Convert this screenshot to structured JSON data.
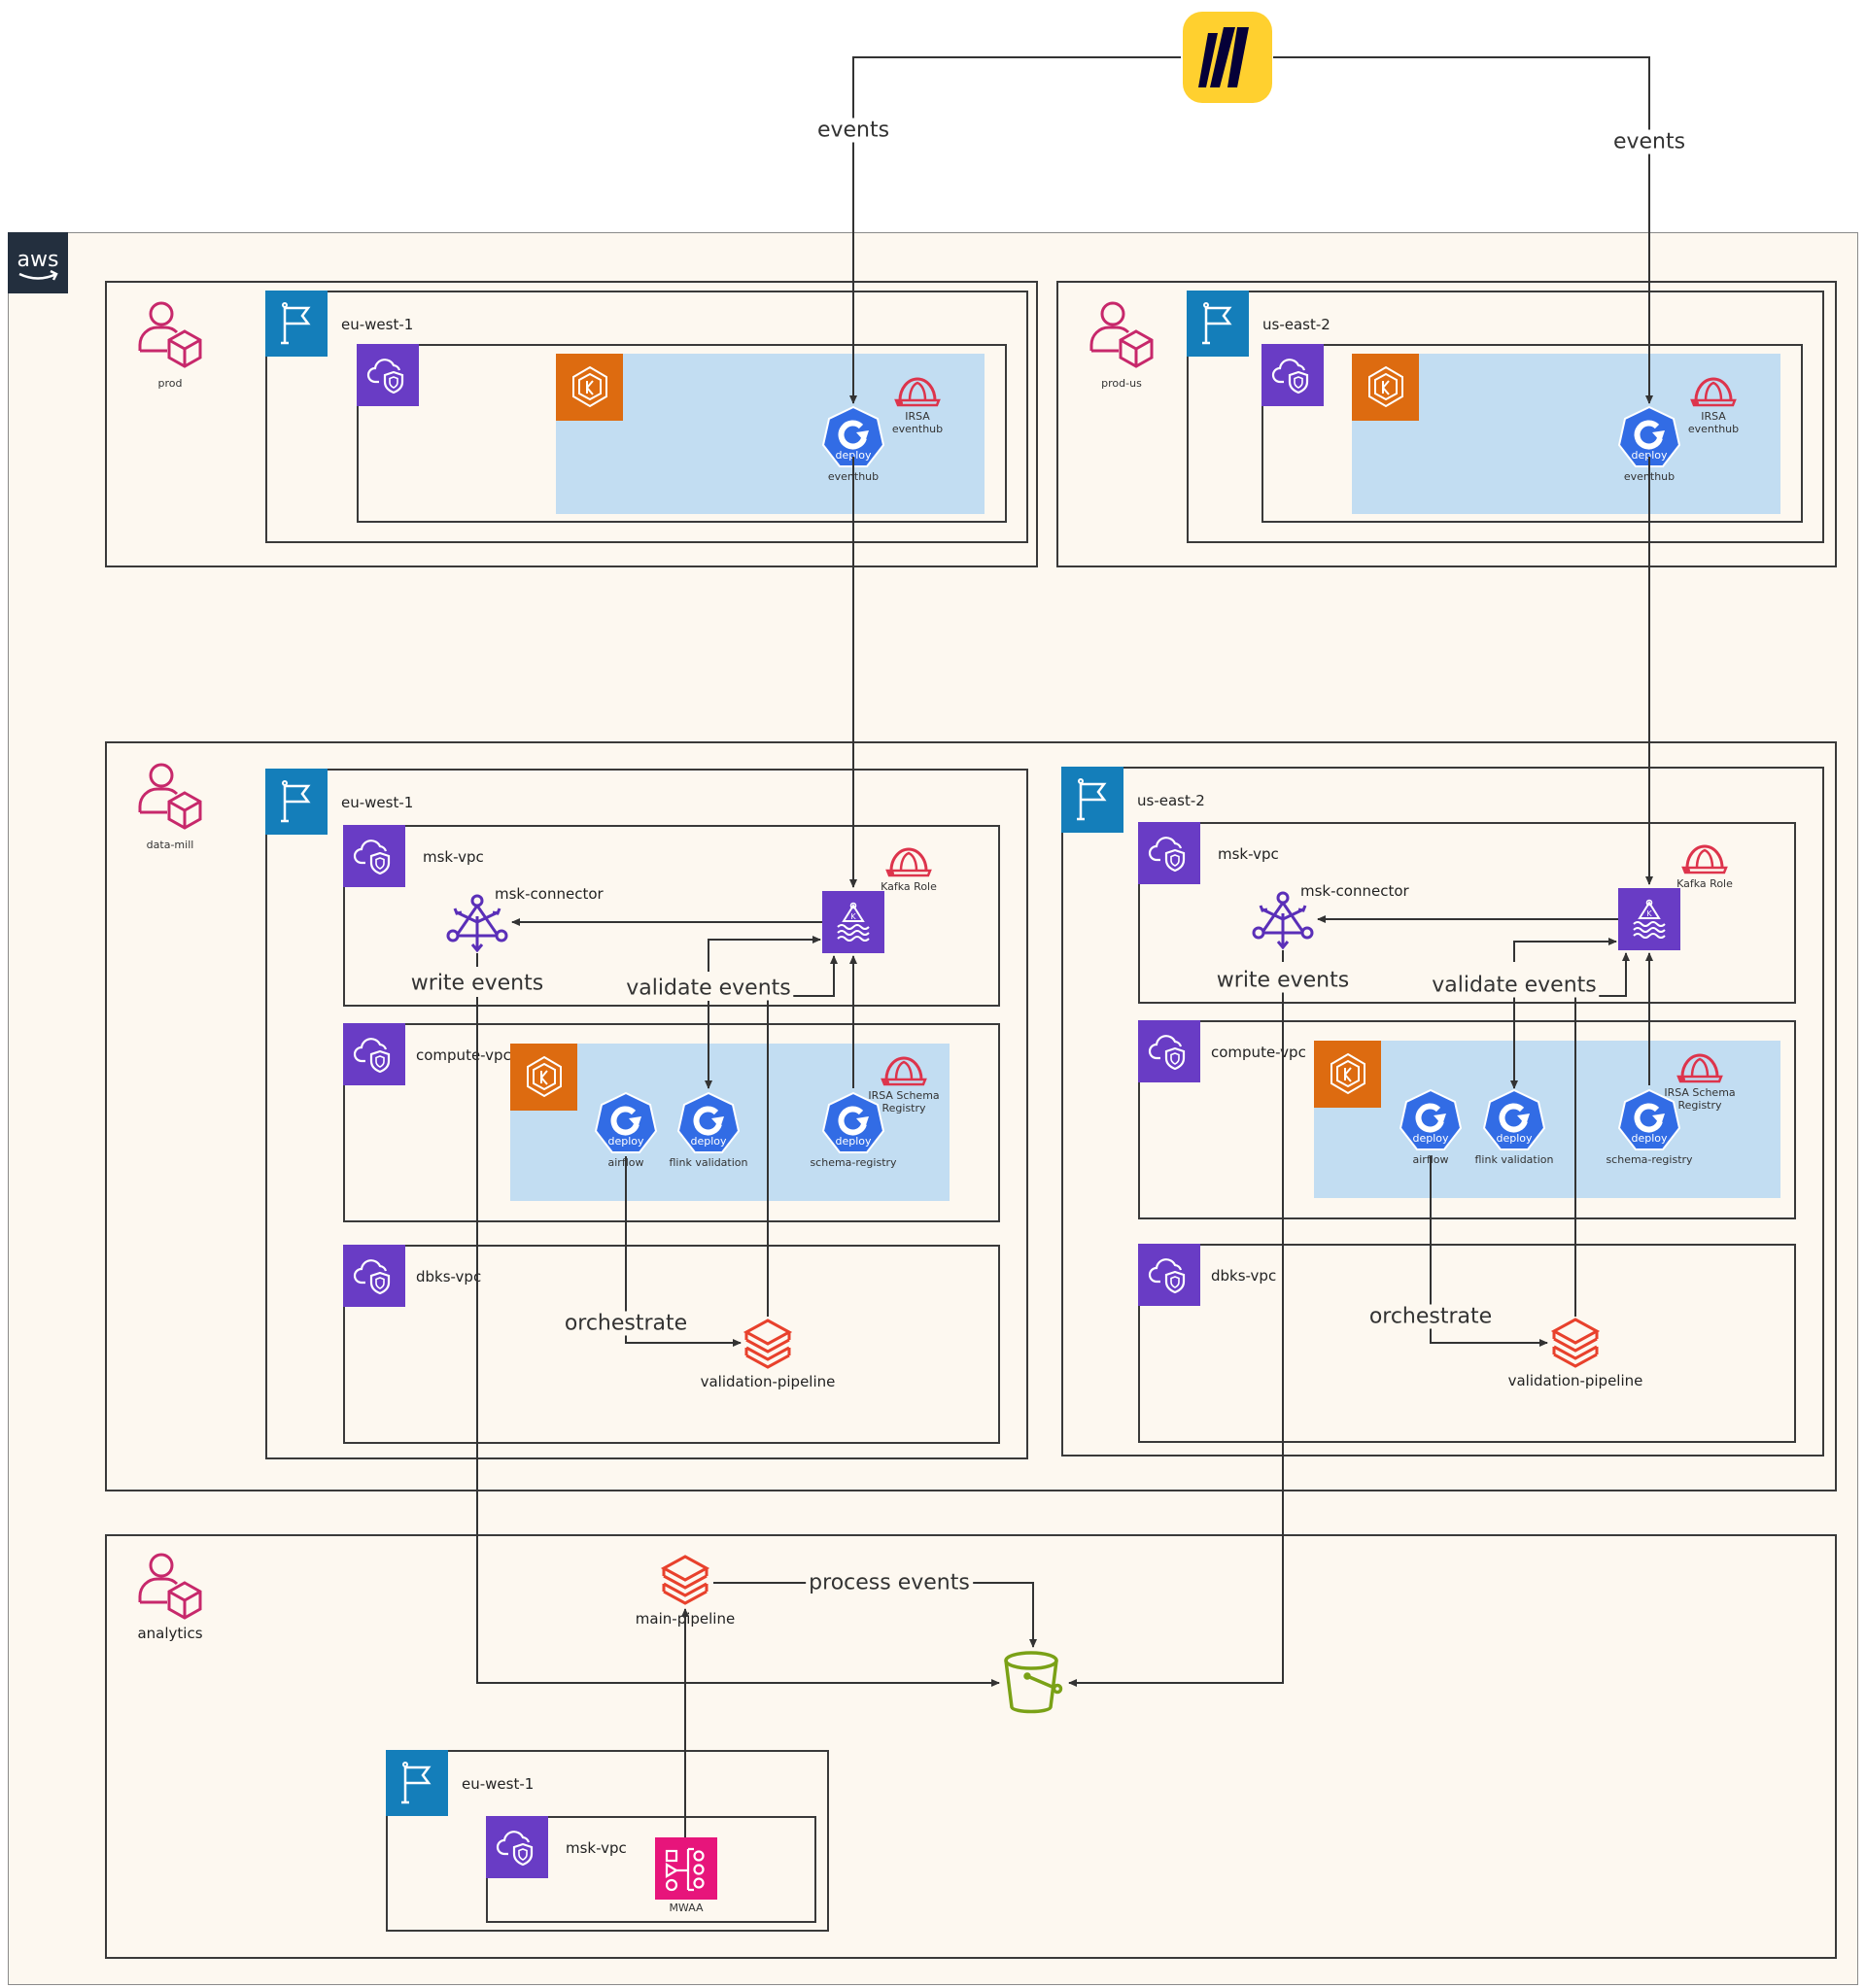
{
  "header": {
    "logo": "miro",
    "events_left": "events",
    "events_right": "events"
  },
  "aws": {
    "logo": "aws"
  },
  "colors": {
    "region": "#147eba",
    "vpc": "#693cc5",
    "eks": "#dd6b10",
    "deploy": "#326ce5",
    "role": "#dd344c",
    "pipeline": "#e8412c",
    "bucket": "#7aa116",
    "mwaa": "#e7157b",
    "account": "#c7286b",
    "eks_area": "#c2ddf2"
  },
  "prod": {
    "account": "prod",
    "region": "eu-west-1",
    "deploy_badge": "deploy",
    "deployment": "eventhub",
    "role_line1": "IRSA",
    "role_line2": "eventhub"
  },
  "prod_us": {
    "account": "prod-us",
    "region": "us-east-2",
    "deploy_badge": "deploy",
    "deployment": "eventhub",
    "role_line1": "IRSA",
    "role_line2": "eventhub"
  },
  "data_mill": {
    "account": "data-mill",
    "eu": {
      "region": "eu-west-1",
      "msk_vpc": "msk-vpc",
      "msk_connector": "msk-connector",
      "kafka_role": "Kafka Role",
      "write_events": "write events",
      "validate_events": "validate events",
      "compute_vpc": "compute-vpc",
      "deploy_badge": "deploy",
      "airflow": "airflow",
      "flink": "flink validation",
      "schema_registry": "schema-registry",
      "irsa_line1": "IRSA Schema",
      "irsa_line2": "Registry",
      "dbks_vpc": "dbks-vpc",
      "orchestrate": "orchestrate",
      "validation_pipeline": "validation-pipeline"
    },
    "us": {
      "region": "us-east-2",
      "msk_vpc": "msk-vpc",
      "msk_connector": "msk-connector",
      "kafka_role": "Kafka Role",
      "write_events": "write events",
      "validate_events": "validate events",
      "compute_vpc": "compute-vpc",
      "deploy_badge": "deploy",
      "airflow": "airflow",
      "flink": "flink validation",
      "schema_registry": "schema-registry",
      "irsa_line1": "IRSA Schema",
      "irsa_line2": "Registry",
      "dbks_vpc": "dbks-vpc",
      "orchestrate": "orchestrate",
      "validation_pipeline": "validation-pipeline"
    }
  },
  "analytics": {
    "account": "analytics",
    "main_pipeline": "main-pipeline",
    "process_events": "process events",
    "region": "eu-west-1",
    "msk_vpc": "msk-vpc",
    "mwaa": "MWAA"
  }
}
